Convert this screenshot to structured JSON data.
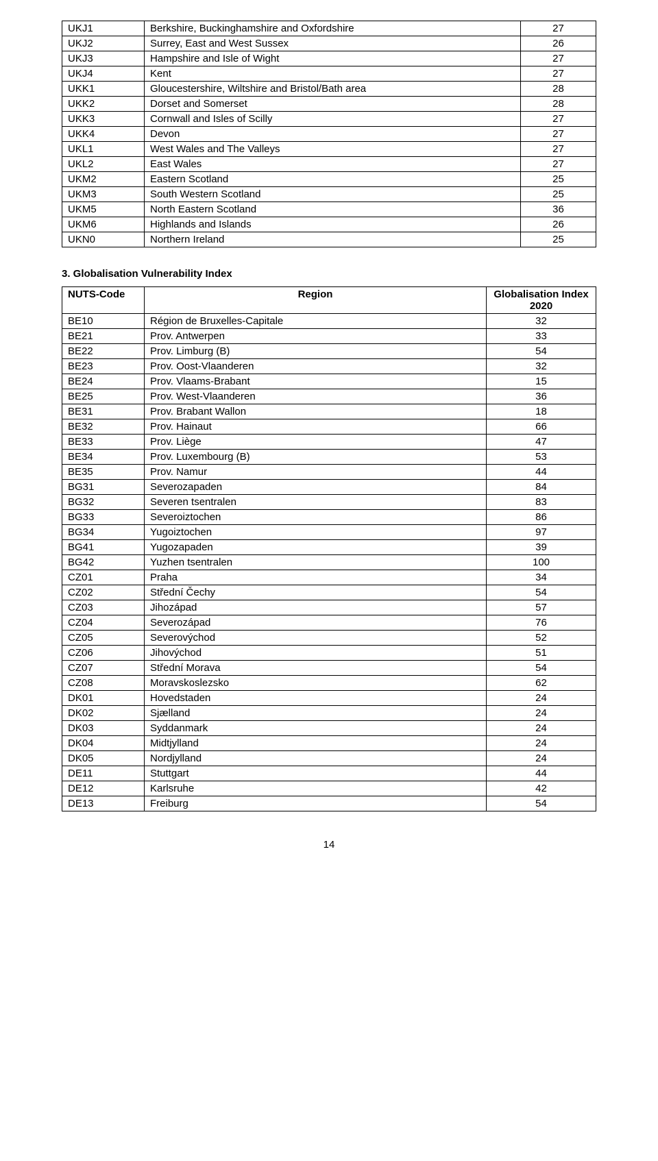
{
  "table1": {
    "rows": [
      {
        "code": "UKJ1",
        "region": "Berkshire, Buckinghamshire and Oxfordshire",
        "value": "27"
      },
      {
        "code": "UKJ2",
        "region": "Surrey, East and West Sussex",
        "value": "26"
      },
      {
        "code": "UKJ3",
        "region": "Hampshire and Isle of Wight",
        "value": "27"
      },
      {
        "code": "UKJ4",
        "region": "Kent",
        "value": "27"
      },
      {
        "code": "UKK1",
        "region": "Gloucestershire, Wiltshire and Bristol/Bath area",
        "value": "28"
      },
      {
        "code": "UKK2",
        "region": "Dorset and Somerset",
        "value": "28"
      },
      {
        "code": "UKK3",
        "region": "Cornwall and Isles of Scilly",
        "value": "27"
      },
      {
        "code": "UKK4",
        "region": "Devon",
        "value": "27"
      },
      {
        "code": "UKL1",
        "region": "West Wales and The Valleys",
        "value": "27"
      },
      {
        "code": "UKL2",
        "region": "East Wales",
        "value": "27"
      },
      {
        "code": "UKM2",
        "region": "Eastern Scotland",
        "value": "25"
      },
      {
        "code": "UKM3",
        "region": "South Western Scotland",
        "value": "25"
      },
      {
        "code": "UKM5",
        "region": "North Eastern Scotland",
        "value": "36"
      },
      {
        "code": "UKM6",
        "region": "Highlands and Islands",
        "value": "26"
      },
      {
        "code": "UKN0",
        "region": "Northern Ireland",
        "value": "25"
      }
    ]
  },
  "section_heading": "3. Globalisation Vulnerability Index",
  "table2": {
    "header": {
      "code": "NUTS-Code",
      "region": "Region",
      "value": "Globalisation Index 2020"
    },
    "rows": [
      {
        "code": "BE10",
        "region": "Région de Bruxelles-Capitale",
        "value": "32"
      },
      {
        "code": "BE21",
        "region": "Prov. Antwerpen",
        "value": "33"
      },
      {
        "code": "BE22",
        "region": "Prov. Limburg (B)",
        "value": "54"
      },
      {
        "code": "BE23",
        "region": "Prov. Oost-Vlaanderen",
        "value": "32"
      },
      {
        "code": "BE24",
        "region": "Prov. Vlaams-Brabant",
        "value": "15"
      },
      {
        "code": "BE25",
        "region": "Prov. West-Vlaanderen",
        "value": "36"
      },
      {
        "code": "BE31",
        "region": "Prov. Brabant Wallon",
        "value": "18"
      },
      {
        "code": "BE32",
        "region": "Prov. Hainaut",
        "value": "66"
      },
      {
        "code": "BE33",
        "region": "Prov. Liège",
        "value": "47"
      },
      {
        "code": "BE34",
        "region": "Prov. Luxembourg (B)",
        "value": "53"
      },
      {
        "code": "BE35",
        "region": "Prov. Namur",
        "value": "44"
      },
      {
        "code": "BG31",
        "region": "Severozapaden",
        "value": "84"
      },
      {
        "code": "BG32",
        "region": "Severen tsentralen",
        "value": "83"
      },
      {
        "code": "BG33",
        "region": "Severoiztochen",
        "value": "86"
      },
      {
        "code": "BG34",
        "region": "Yugoiztochen",
        "value": "97"
      },
      {
        "code": "BG41",
        "region": "Yugozapaden",
        "value": "39"
      },
      {
        "code": "BG42",
        "region": "Yuzhen tsentralen",
        "value": "100"
      },
      {
        "code": "CZ01",
        "region": "Praha",
        "value": "34"
      },
      {
        "code": "CZ02",
        "region": "Střední Čechy",
        "value": "54"
      },
      {
        "code": "CZ03",
        "region": "Jihozápad",
        "value": "57"
      },
      {
        "code": "CZ04",
        "region": "Severozápad",
        "value": "76"
      },
      {
        "code": "CZ05",
        "region": "Severovýchod",
        "value": "52"
      },
      {
        "code": "CZ06",
        "region": "Jihovýchod",
        "value": "51"
      },
      {
        "code": "CZ07",
        "region": "Střední Morava",
        "value": "54"
      },
      {
        "code": "CZ08",
        "region": "Moravskoslezsko",
        "value": "62"
      },
      {
        "code": "DK01",
        "region": "Hovedstaden",
        "value": "24"
      },
      {
        "code": "DK02",
        "region": "Sjælland",
        "value": "24"
      },
      {
        "code": "DK03",
        "region": "Syddanmark",
        "value": "24"
      },
      {
        "code": "DK04",
        "region": "Midtjylland",
        "value": "24"
      },
      {
        "code": "DK05",
        "region": "Nordjylland",
        "value": "24"
      },
      {
        "code": "DE11",
        "region": "Stuttgart",
        "value": "44"
      },
      {
        "code": "DE12",
        "region": "Karlsruhe",
        "value": "42"
      },
      {
        "code": "DE13",
        "region": "Freiburg",
        "value": "54"
      }
    ]
  },
  "page_number": "14"
}
